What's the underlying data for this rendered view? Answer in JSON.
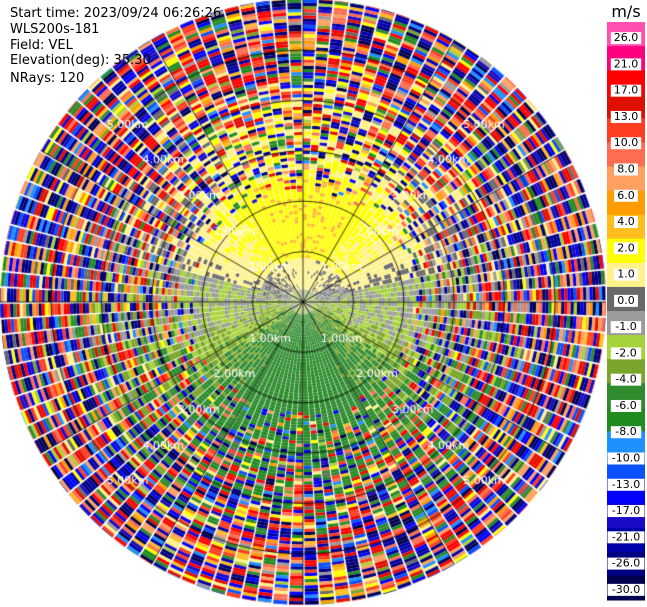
{
  "header": {
    "start_time": "Start time: 2023/09/24 06:26:26",
    "instrument": "WLS200s-181",
    "field": "Field: VEL",
    "elevation": "Elevation(deg): 35.30",
    "nrays": "NRays: 120"
  },
  "colorbar": {
    "unit": "m/s",
    "ticks": [
      "26.0",
      "21.0",
      "17.0",
      "13.0",
      "10.0",
      "8.0",
      "6.0",
      "4.0",
      "2.0",
      "1.0",
      "0.0",
      "-1.0",
      "-2.0",
      "-4.0",
      "-6.0",
      "-8.0",
      "-10.0",
      "-13.0",
      "-17.0",
      "-21.0",
      "-26.0",
      "-30.0"
    ],
    "colors": [
      "#ff4fb0",
      "#ff0080",
      "#ff0000",
      "#e01000",
      "#ff3d20",
      "#ff6d50",
      "#ffa060",
      "#ff9d00",
      "#ffbd20",
      "#ffff00",
      "#fff28a",
      "#696969",
      "#9b9b9b",
      "#a6d23a",
      "#7aa42a",
      "#2e8b2e",
      "#208c20",
      "#1e90ff",
      "#0a50ff",
      "#0000ff",
      "#1a0bc8",
      "#0000aa",
      "#000080",
      "#000050"
    ]
  },
  "chart_data": {
    "type": "ppi",
    "field": "VEL",
    "units": "m/s",
    "nrays": 120,
    "range_ring_labels": [
      "1.00km",
      "2.00km",
      "3.00km",
      "4.00km",
      "5.00km"
    ],
    "range_rings_km": [
      1,
      2,
      3,
      4,
      5
    ],
    "max_range_km": 5.6,
    "color_bounds": [
      -30,
      -26,
      -21,
      -17,
      -13,
      -10,
      -8,
      -6,
      -4,
      -2,
      -1,
      0,
      1,
      2,
      4,
      6,
      8,
      10,
      13,
      17,
      21,
      26,
      30
    ],
    "rings_data": [
      {
        "r_km": [
          0.0,
          0.9
        ],
        "pattern": "near-field weak velocities 0 to ±2 m/s"
      },
      {
        "r_km": [
          0.9,
          1.9
        ],
        "pattern": "north: positive 2–6 m/s (yellow/orange); south: negative -2 to -6 m/s (green)"
      },
      {
        "r_km": [
          1.9,
          3.0
        ],
        "pattern": "mixed positive north, negative south, gray near 0 on flanks"
      },
      {
        "r_km": [
          3.0,
          5.6
        ],
        "pattern": "noise / folded velocities across full scale"
      }
    ]
  }
}
